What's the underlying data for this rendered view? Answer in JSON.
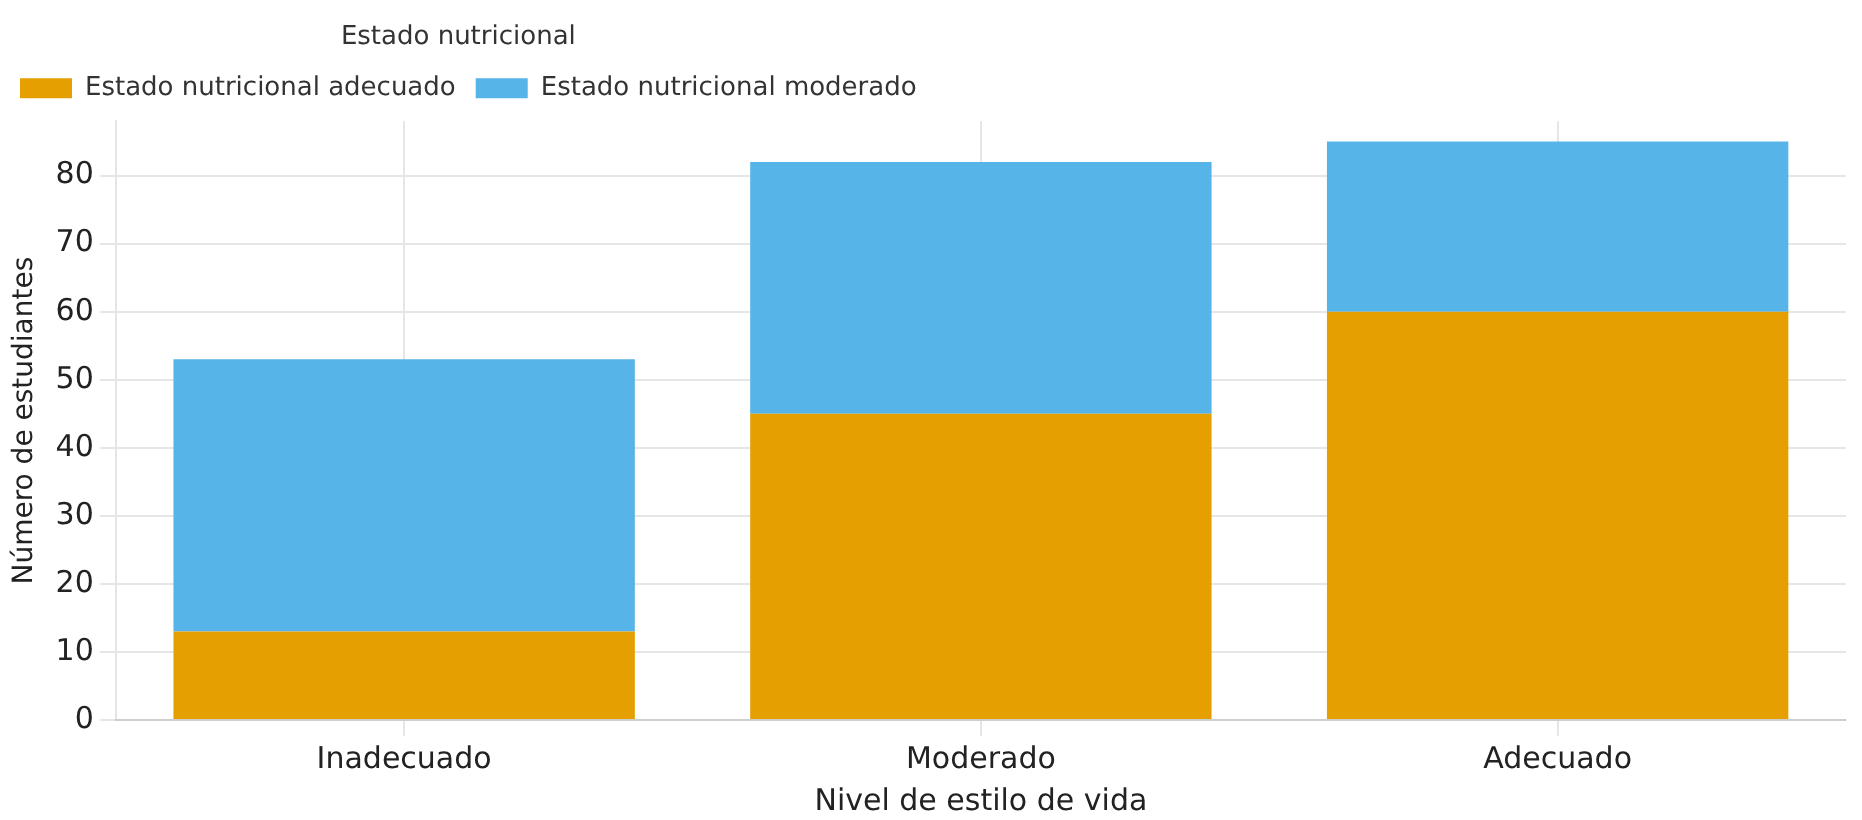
{
  "chart_data": {
    "type": "bar",
    "xlabel": "Nivel de estilo de vida",
    "ylabel": "Número de estudiantes",
    "legend_title": "Estado nutricional",
    "categories": [
      "Inadecuado",
      "Moderado",
      "Adecuado"
    ],
    "series": [
      {
        "name": "Estado nutricional adecuado",
        "color": "#e69f00",
        "values": [
          13,
          45,
          60
        ]
      },
      {
        "name": "Estado nutricional moderado",
        "color": "#56b4e9",
        "values": [
          40,
          37,
          25
        ]
      }
    ],
    "stacked": true,
    "ylim": [
      0,
      88
    ],
    "yticks": [
      0,
      10,
      20,
      30,
      40,
      50,
      60,
      70,
      80
    ],
    "grid": true,
    "legend": "top left"
  }
}
